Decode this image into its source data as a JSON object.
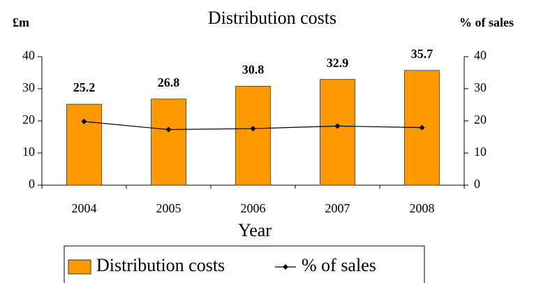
{
  "chart_data": {
    "type": "bar_line",
    "title": "Distribution costs",
    "ylabel": "£m",
    "y2label": "% of sales",
    "xlabel": "Year",
    "categories": [
      "2004",
      "2005",
      "2006",
      "2007",
      "2008"
    ],
    "series": [
      {
        "name": "Distribution costs",
        "color": "#FF9900",
        "type": "bar",
        "values": [
          25.2,
          26.8,
          30.8,
          32.9,
          35.7
        ]
      },
      {
        "name": "% of sales",
        "color": "#000000",
        "type": "line",
        "axis": "y2",
        "values": [
          19.8,
          17.3,
          17.6,
          18.4,
          17.9
        ]
      }
    ],
    "ylim": [
      0,
      40
    ],
    "yticks": [
      0,
      10,
      20,
      30,
      40
    ],
    "y2lim": [
      0,
      40
    ],
    "y2ticks": [
      0,
      10,
      20,
      30,
      40
    ],
    "legend": "bottom"
  }
}
